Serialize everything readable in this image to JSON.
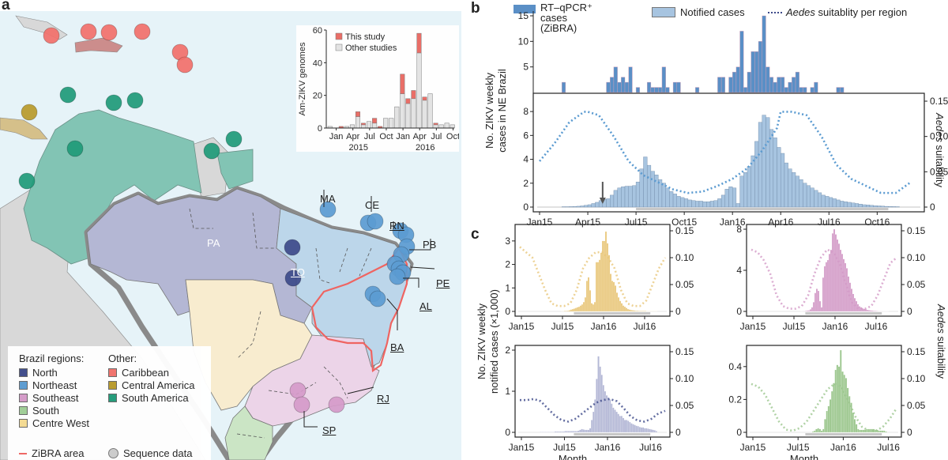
{
  "panels": {
    "a": "a",
    "b": "b",
    "c": "c"
  },
  "map": {
    "state_labels": {
      "PA": "PA",
      "TO": "TO",
      "MA": "MA",
      "CE": "CE",
      "RN": "RN",
      "PB": "PB",
      "PE": "PE",
      "AL": "AL",
      "BA": "BA",
      "RJ": "RJ",
      "SP": "SP"
    },
    "legend": {
      "brazil_header": "Brazil regions:",
      "other_header": "Other:",
      "brazil_regions": [
        {
          "label": "North",
          "color": "#3d4a8a"
        },
        {
          "label": "Northeast",
          "color": "#5b9bd1"
        },
        {
          "label": "Southeast",
          "color": "#d59ac9"
        },
        {
          "label": "South",
          "color": "#9fce96"
        },
        {
          "label": "Centre West",
          "color": "#f6dc92"
        }
      ],
      "other_regions": [
        {
          "label": "Caribbean",
          "color": "#f2706a"
        },
        {
          "label": "Central America",
          "color": "#b89a2a"
        },
        {
          "label": "South America",
          "color": "#1f9a78"
        }
      ],
      "zibra_label": "ZiBRA area",
      "zibra_color": "#ef6461",
      "sequence_label": "Sequence data"
    },
    "region_fills": {
      "north": "#b4b7d4",
      "northeast": "#bcd6ea",
      "southeast": "#ecd4e8",
      "south": "#cbe5c5",
      "centre_west": "#f8eccf",
      "south_america": "#82c4b4",
      "other_land": "#d8d8d8",
      "ocean": "#e6f3f8"
    }
  },
  "chart_data": [
    {
      "id": "a-inset",
      "type": "bar",
      "stacked": true,
      "title": "",
      "ylabel": "Am-ZIKV genomes",
      "xlabel": "",
      "ylim": [
        0,
        60
      ],
      "yticks": [
        0,
        20,
        40,
        60
      ],
      "xtick_labels": [
        "Jan",
        "Apr",
        "Jul",
        "Oct",
        "Jan",
        "Apr",
        "Jul",
        "Oct"
      ],
      "year_labels": [
        "2015",
        "2016"
      ],
      "months": [
        "Dec14",
        "Jan15",
        "Feb15",
        "Mar15",
        "Apr15",
        "May15",
        "Jun15",
        "Jul15",
        "Aug15",
        "Sep15",
        "Oct15",
        "Nov15",
        "Dec15",
        "Jan16",
        "Feb16",
        "Mar16",
        "Apr16",
        "May16",
        "Jun16",
        "Jul16",
        "Aug16",
        "Sep16",
        "Oct16"
      ],
      "series": [
        {
          "name": "Other studies",
          "color": "#e3e3e3",
          "values": [
            1,
            0,
            0,
            1,
            2,
            7,
            2,
            4,
            3,
            0,
            6,
            6,
            13,
            21,
            15,
            18,
            46,
            17,
            21,
            2,
            2,
            3,
            2
          ]
        },
        {
          "name": "This study",
          "color": "#ea6a63",
          "values": [
            0,
            0,
            1,
            0,
            0,
            3,
            1,
            0,
            3,
            1,
            0,
            0,
            0,
            12,
            3,
            5,
            12,
            2,
            0,
            1,
            0,
            0,
            0
          ]
        }
      ],
      "legend": [
        "This study",
        "Other studies"
      ],
      "legend_position": "top-left"
    },
    {
      "id": "b",
      "type": "bar",
      "title": "",
      "ylabel": "No. ZIKV weekly cases in NE Brazil",
      "y2label": "Aedes suitability",
      "legend": [
        {
          "label": "RT–qPCR⁺ cases (ZiBRA)",
          "color": "#5a8fc6"
        },
        {
          "label": "Notified cases",
          "color": "#a7c4e0"
        },
        {
          "label": "Aedes suitablity per region",
          "style": "dotted",
          "color": "#5b9bd1"
        }
      ],
      "legend_position": "top",
      "xtick_labels": [
        "Jan15",
        "Apr15",
        "Jul15",
        "Oct15",
        "Jan16",
        "Apr16",
        "Jul16",
        "Oct16"
      ],
      "zibra_cases": {
        "ylim": [
          0,
          15
        ],
        "yticks": [
          5,
          10,
          15
        ],
        "week_start": 6,
        "values": [
          2,
          0,
          0,
          0,
          0,
          0,
          0,
          0,
          0,
          0,
          0,
          0,
          2,
          3,
          5,
          2,
          3,
          2,
          5,
          0,
          1,
          0,
          0,
          2,
          1,
          1,
          1,
          5,
          1,
          0,
          2,
          2,
          0,
          0,
          0,
          0,
          1,
          0,
          0,
          0,
          0,
          0,
          3,
          3,
          0,
          3,
          4,
          5,
          12,
          1,
          4,
          8,
          8,
          10,
          15,
          5,
          3,
          2,
          3,
          3,
          1,
          2,
          3,
          4,
          1,
          1,
          0,
          1,
          2,
          0,
          0,
          0,
          0,
          0,
          1,
          1
        ]
      },
      "notified_cases": {
        "ylim": [
          0,
          9
        ],
        "yticks": [
          0,
          2,
          4,
          6,
          8
        ],
        "unit": "x1000",
        "values": [
          0.02,
          0.02,
          0.02,
          0.02,
          0.02,
          0.02,
          0.03,
          0.03,
          0.04,
          0.05,
          0.07,
          0.1,
          0.15,
          0.2,
          0.3,
          0.4,
          0.55,
          0.65,
          0.7,
          1.0,
          1.4,
          1.6,
          1.7,
          1.75,
          1.75,
          1.8,
          2.1,
          3.2,
          4.2,
          3.5,
          3.0,
          2.7,
          2.3,
          2.0,
          1.6,
          1.3,
          1.1,
          0.9,
          0.8,
          0.7,
          0.6,
          0.55,
          0.5,
          0.5,
          0.45,
          0.45,
          0.5,
          0.55,
          0.7,
          1.0,
          1.5,
          1.7,
          1.6,
          0.3,
          2.6,
          2.9,
          3.4,
          4.3,
          5.5,
          7.1,
          7.7,
          7.5,
          6.5,
          5.8,
          5.0,
          4.5,
          3.7,
          3.2,
          2.9,
          2.6,
          2.3,
          2.0,
          1.8,
          1.6,
          1.4,
          1.2,
          1.0,
          0.9,
          0.8,
          0.7,
          0.6,
          0.5,
          0.45,
          0.4,
          0.35,
          0.3,
          0.25,
          0.2,
          0.18,
          0.15,
          0.12,
          0.1,
          0.08,
          0.06,
          0.05,
          0.04,
          0.03,
          0.02,
          0.02,
          0.02,
          0.02
        ],
        "arrow_week": 17,
        "highlight_range_weeks": [
          26,
          94
        ]
      },
      "suitability": {
        "ylim": [
          0,
          0.15
        ],
        "yticks": [
          0,
          0.05,
          0.1,
          0.15
        ],
        "weeks": [
          0,
          4,
          8,
          12,
          13,
          16,
          20,
          24,
          28,
          32,
          36,
          40,
          44,
          48,
          52,
          56,
          60,
          64,
          65,
          68,
          72,
          76,
          80,
          84,
          88,
          92,
          96,
          100
        ],
        "values": [
          0.065,
          0.09,
          0.12,
          0.135,
          0.135,
          0.13,
          0.1,
          0.065,
          0.045,
          0.035,
          0.025,
          0.02,
          0.022,
          0.03,
          0.04,
          0.055,
          0.08,
          0.112,
          0.135,
          0.135,
          0.13,
          0.1,
          0.06,
          0.04,
          0.03,
          0.02,
          0.02,
          0.035
        ]
      }
    },
    {
      "id": "c-centre-west",
      "type": "bar",
      "region": "Centre West",
      "color": "#e9c77a",
      "ylim": [
        0,
        3.5
      ],
      "yticks": [
        0,
        1,
        2,
        3
      ],
      "y2ticks": [
        0,
        0.05,
        0.1,
        0.15
      ],
      "xtick_labels": [
        "Jan15",
        "Jul15",
        "Jan16",
        "Jul16"
      ],
      "values": [
        0,
        0,
        0,
        0,
        0,
        0,
        0,
        0,
        0,
        0,
        0,
        0,
        0,
        0,
        0,
        0,
        0,
        0,
        0,
        0,
        0,
        0,
        0,
        0,
        0,
        0,
        0.01,
        0.01,
        0.02,
        0.02,
        0.03,
        0.05,
        0.08,
        0.1,
        0.12,
        0.15,
        0.18,
        0.2,
        0.25,
        0.3,
        0.4,
        0.6,
        1.3,
        1.45,
        0.9,
        0.35,
        0.3,
        0.4,
        2.1,
        2.1,
        2.2,
        2.5,
        3.0,
        3.0,
        3.4,
        2.9,
        2.4,
        1.6,
        1.3,
        1.25,
        1.1,
        0.8,
        0.6,
        0.45,
        0.35,
        0.25,
        0.2,
        0.15,
        0.1,
        0.08,
        0.06,
        0.05,
        0.04,
        0.03,
        0.03,
        0.02,
        0.02,
        0.02,
        0.02,
        0.02,
        0.01,
        0.01,
        0.01,
        0.01,
        0.01,
        0.01,
        0.01,
        0
      ],
      "suitability": [
        0.12,
        0.11,
        0.1,
        0.07,
        0.04,
        0.015,
        0.01,
        0.01,
        0.015,
        0.04,
        0.08,
        0.1,
        0.11,
        0.11,
        0.1,
        0.08,
        0.04,
        0.015,
        0.01,
        0.01,
        0.02,
        0.05,
        0.08,
        0.1
      ]
    },
    {
      "id": "c-southeast",
      "type": "bar",
      "region": "Southeast",
      "color": "#d39ac7",
      "ylim": [
        0,
        8
      ],
      "yticks": [
        0,
        4,
        8
      ],
      "y2ticks": [
        0,
        0.05,
        0.1,
        0.15
      ],
      "xtick_labels": [
        "Jan15",
        "Jul15",
        "Jan16",
        "Jul16"
      ],
      "values": [
        0,
        0,
        0,
        0,
        0,
        0,
        0,
        0,
        0,
        0,
        0,
        0,
        0,
        0,
        0,
        0,
        0,
        0,
        0,
        0,
        0,
        0,
        0,
        0,
        0,
        0,
        0,
        0,
        0,
        0,
        0,
        0.01,
        0.02,
        0.03,
        0.05,
        0.08,
        0.1,
        0.2,
        0.4,
        0.9,
        1.8,
        2.2,
        2.0,
        1.0,
        0.4,
        3.3,
        4.4,
        4.8,
        5.0,
        5.6,
        6.0,
        7.6,
        8.0,
        7.5,
        7.0,
        6.6,
        6.0,
        5.6,
        5.1,
        4.7,
        4.2,
        3.4,
        2.8,
        2.2,
        1.7,
        1.3,
        1.0,
        0.7,
        0.5,
        0.4,
        0.3,
        0.25,
        0.2,
        0.15,
        0.12,
        0.1,
        0.08,
        0.06,
        0.05,
        0.04,
        0.03,
        0.02,
        0.02,
        0.01,
        0.01,
        0.01,
        0.01,
        0
      ],
      "suitability": [
        0.115,
        0.11,
        0.095,
        0.07,
        0.03,
        0.01,
        0.005,
        0.005,
        0.01,
        0.03,
        0.07,
        0.1,
        0.115,
        0.11,
        0.09,
        0.05,
        0.015,
        0.005,
        0.005,
        0.01,
        0.03,
        0.06,
        0.09,
        0.1
      ]
    },
    {
      "id": "c-north",
      "type": "bar",
      "region": "North",
      "color": "#b4b8d6",
      "ylim": [
        0,
        2
      ],
      "yticks": [
        0,
        1,
        2
      ],
      "y2ticks": [
        0,
        0.05,
        0.1,
        0.15
      ],
      "xtick_labels": [
        "Jan15",
        "Jul15",
        "Jan16",
        "Jul16"
      ],
      "xlabel": "Month",
      "values": [
        0,
        0,
        0,
        0,
        0,
        0,
        0,
        0,
        0,
        0,
        0,
        0,
        0.01,
        0.01,
        0.01,
        0.01,
        0.01,
        0.01,
        0.01,
        0.01,
        0.01,
        0.02,
        0.02,
        0.02,
        0.02,
        0.02,
        0.02,
        0.03,
        0.03,
        0.03,
        0.03,
        0.03,
        0.03,
        0.03,
        0.03,
        0.04,
        0.06,
        0.08,
        0.07,
        0.06,
        0.06,
        0.06,
        0.1,
        0.3,
        0.5,
        0.8,
        1.3,
        1.85,
        1.6,
        1.4,
        1.15,
        1.0,
        0.9,
        0.85,
        0.8,
        0.7,
        0.6,
        0.55,
        0.5,
        0.45,
        0.4,
        0.4,
        0.35,
        0.3,
        0.3,
        0.28,
        0.25,
        0.22,
        0.2,
        0.18,
        0.16,
        0.15,
        0.13,
        0.12,
        0.12,
        0.1,
        0.1,
        0.09,
        0.08,
        0.07,
        0.06,
        0.05,
        0.03,
        0
      ],
      "suitability": [
        0.06,
        0.06,
        0.062,
        0.058,
        0.045,
        0.032,
        0.023,
        0.02,
        0.025,
        0.035,
        0.045,
        0.055,
        0.06,
        0.062,
        0.058,
        0.045,
        0.03,
        0.022,
        0.02,
        0.025,
        0.035,
        0.04
      ]
    },
    {
      "id": "c-south",
      "type": "bar",
      "region": "South",
      "color": "#9cc78e",
      "ylim": [
        0,
        0.5
      ],
      "yticks": [
        0,
        0.2,
        0.4
      ],
      "y2ticks": [
        0,
        0.05,
        0.1,
        0.15
      ],
      "xtick_labels": [
        "Jan15",
        "Jul15",
        "Jan16",
        "Jul16"
      ],
      "xlabel": "Month",
      "values": [
        0,
        0,
        0,
        0,
        0,
        0,
        0,
        0,
        0,
        0,
        0,
        0,
        0,
        0,
        0,
        0,
        0,
        0,
        0,
        0,
        0,
        0,
        0,
        0,
        0,
        0,
        0,
        0,
        0,
        0,
        0,
        0,
        0,
        0,
        0,
        0.005,
        0.01,
        0.02,
        0.025,
        0.02,
        0.01,
        0.02,
        0.08,
        0.13,
        0.16,
        0.2,
        0.25,
        0.3,
        0.38,
        0.41,
        0.4,
        0.5,
        0.37,
        0.35,
        0.33,
        0.27,
        0.22,
        0.18,
        0.12,
        0.08,
        0.05,
        0.02,
        0.015,
        0.015,
        0.015,
        0.015,
        0.02,
        0.02,
        0.02,
        0.02,
        0.02,
        0.015,
        0.015,
        0.01,
        0.01,
        0.01,
        0.01,
        0.005,
        0,
        0
      ],
      "suitability": [
        0.09,
        0.085,
        0.07,
        0.045,
        0.02,
        0.005,
        0.003,
        0.008,
        0.02,
        0.04,
        0.06,
        0.08,
        0.09,
        0.085,
        0.06,
        0.03,
        0.01,
        0.003,
        0.003,
        0.01,
        0.025,
        0.045
      ]
    }
  ],
  "panel_c": {
    "ylabel": "No. ZIKV weekly notified cases (×1,000)",
    "y2label": "Aedes suitability",
    "xlabel": "Month"
  }
}
